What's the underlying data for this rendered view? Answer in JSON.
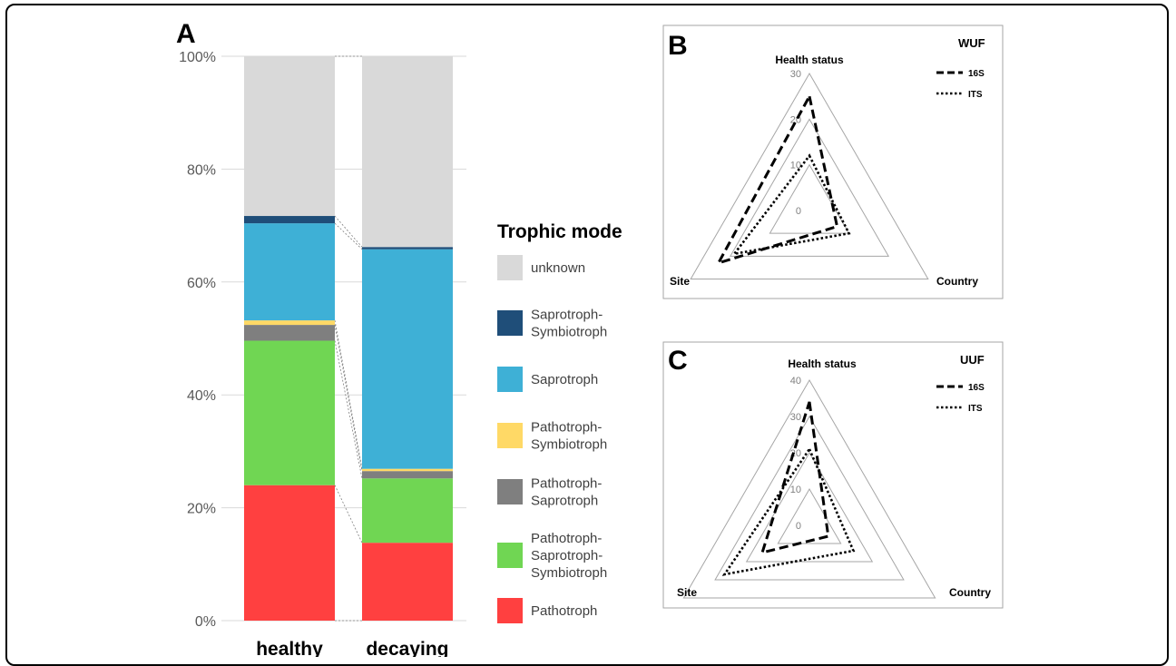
{
  "chart_data": [
    {
      "panel": "A",
      "type": "bar",
      "stacked": true,
      "categories": [
        "healthy",
        "decaying"
      ],
      "yticks": [
        "0%",
        "20%",
        "40%",
        "60%",
        "80%",
        "100%"
      ],
      "ylim": [
        0,
        100
      ],
      "legend_title": "Trophic mode",
      "legend_position": "right",
      "series": [
        {
          "name": "Pathotroph",
          "legend_lines": [
            "Pathotroph"
          ],
          "color": "#ff4040",
          "values": [
            24.0,
            13.8
          ]
        },
        {
          "name": "Pathotroph-Saprotroph-Symbiotroph",
          "legend_lines": [
            "Pathotroph-",
            "Saprotroph-",
            "Symbiotroph"
          ],
          "color": "#70d653",
          "values": [
            25.6,
            11.4
          ]
        },
        {
          "name": "Pathotroph-Saprotroph",
          "legend_lines": [
            "Pathotroph-",
            "Saprotroph"
          ],
          "color": "#7f7f7f",
          "values": [
            2.8,
            1.3
          ]
        },
        {
          "name": "Pathotroph-Symbiotroph",
          "legend_lines": [
            "Pathotroph-",
            "Symbiotroph"
          ],
          "color": "#ffd966",
          "values": [
            0.8,
            0.4
          ]
        },
        {
          "name": "Saprotroph",
          "legend_lines": [
            "Saprotroph"
          ],
          "color": "#3eb0d6",
          "values": [
            17.2,
            38.9
          ]
        },
        {
          "name": "Saprotroph-Symbiotroph",
          "legend_lines": [
            "Saprotroph-",
            "Symbiotroph"
          ],
          "color": "#1f4e79",
          "values": [
            1.3,
            0.4
          ]
        },
        {
          "name": "unknown",
          "legend_lines": [
            "unknown"
          ],
          "color": "#d9d9d9",
          "values": [
            28.3,
            33.8
          ]
        }
      ]
    },
    {
      "panel": "B",
      "type": "radar",
      "title": "WUF",
      "axes": [
        "Health status",
        "Country",
        "Site"
      ],
      "ticks": [
        "0",
        "10",
        "20",
        "30"
      ],
      "rmax": 30,
      "series": [
        {
          "name": "16S",
          "style": "dashed",
          "values": [
            25,
            7,
            23
          ]
        },
        {
          "name": "ITS",
          "style": "dotted",
          "values": [
            12,
            10,
            19
          ]
        }
      ]
    },
    {
      "panel": "C",
      "type": "radar",
      "title": "UUF",
      "axes": [
        "Health status",
        "Country",
        "Site"
      ],
      "ticks": [
        "0",
        "10",
        "20",
        "30",
        "40"
      ],
      "rmax": 40,
      "series": [
        {
          "name": "16S",
          "style": "dashed",
          "values": [
            34,
            6,
            15
          ]
        },
        {
          "name": "ITS",
          "style": "dotted",
          "values": [
            21,
            14,
            27
          ]
        }
      ]
    }
  ]
}
